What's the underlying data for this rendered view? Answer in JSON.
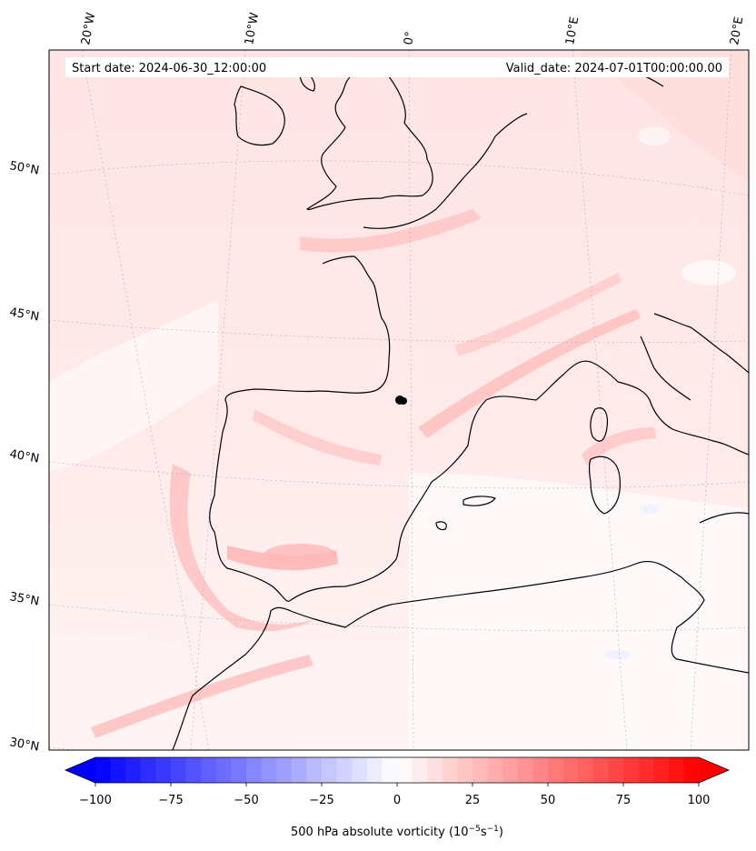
{
  "header": {
    "start_date": "Start date: 2024-06-30_12:00:00",
    "valid_date": "Valid_date: 2024-07-01T00:00:00.00"
  },
  "longitude_labels": [
    "20°W",
    "10°W",
    "0°",
    "10°E",
    "20°E"
  ],
  "latitude_labels": [
    "50°N",
    "45°N",
    "40°N",
    "35°N",
    "30°N"
  ],
  "colorbar": {
    "ticks": [
      "−100",
      "−75",
      "−50",
      "−25",
      "0",
      "25",
      "50",
      "75",
      "100"
    ],
    "label_main": "500 hPa absolute vorticity (10",
    "exp1": "−5",
    "label_mid": "s",
    "exp2": "−1",
    "label_end": ")",
    "colors": {
      "min": "#0000ff",
      "mid": "#ffffff",
      "max": "#ff0000"
    },
    "steps": 40
  },
  "colors": {
    "coastline": "#000000",
    "grid": "#b0b0b0",
    "field_light": "#ffe8e8",
    "field_mid": "#ffcccc",
    "field_strong": "#ffb0b0"
  },
  "marker": {
    "label": ""
  }
}
